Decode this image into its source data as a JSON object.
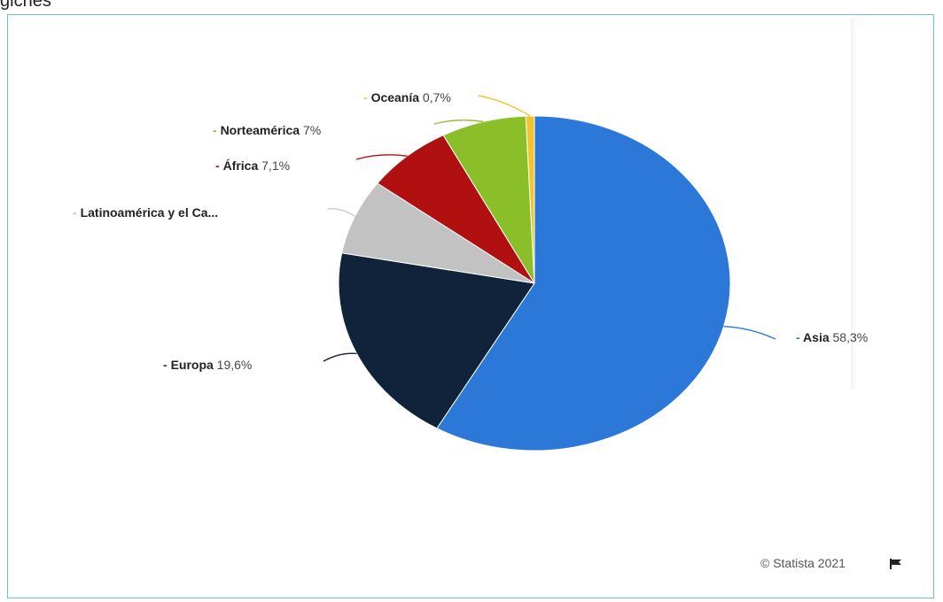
{
  "top_fragment": "gicnes",
  "chart_data": {
    "type": "pie",
    "title": "",
    "slices": [
      {
        "name": "Asia",
        "value": 58.3,
        "value_label": "58,3%",
        "color": "#2b78d9"
      },
      {
        "name": "Europa",
        "value": 19.6,
        "value_label": "19,6%",
        "color": "#10233a"
      },
      {
        "name": "Latinoamérica y el Ca...",
        "value": 7.3,
        "value_label": "",
        "color": "#c2c2c2"
      },
      {
        "name": "África",
        "value": 7.1,
        "value_label": "7,1%",
        "color": "#b01010"
      },
      {
        "name": "Norteamérica",
        "value": 7,
        "value_label": "7%",
        "color": "#8bbf2a"
      },
      {
        "name": "Oceanía",
        "value": 0.7,
        "value_label": "0,7%",
        "color": "#f2c530"
      }
    ]
  },
  "credit": "© Statista 2021"
}
